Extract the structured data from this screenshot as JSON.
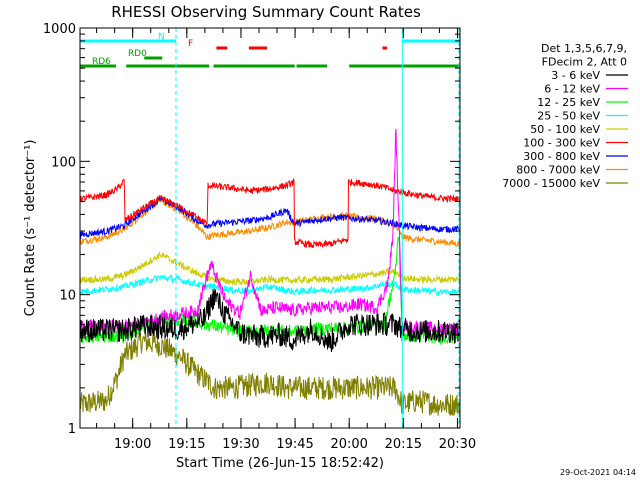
{
  "chart_data": {
    "type": "line",
    "title": "RHESSI Observing Summary Count Rates",
    "xlabel": "Start Time (26-Jun-15 18:52:42)",
    "ylabel": "Count Rate (s⁻¹ detector⁻¹)",
    "yscale": "log",
    "ylim": [
      1,
      1000
    ],
    "xlim_minutes_from_start": [
      -7.3,
      98
    ],
    "x_tick_labels": [
      "19:00",
      "19:15",
      "19:30",
      "19:45",
      "20:00",
      "20:15",
      "20:30"
    ],
    "x_tick_minutes": [
      7.3,
      22.3,
      37.3,
      52.3,
      67.3,
      82.3,
      97.3
    ],
    "y_tick_labels": [
      "1",
      "10",
      "100",
      "1000"
    ],
    "y_tick_values": [
      1,
      10,
      100,
      1000
    ],
    "legend_header": [
      "Det 1,3,5,6,7,9,",
      "FDecim 2, Att 0"
    ],
    "legend_placement": "right",
    "timestamp": "29-Oct-2021 04:14",
    "flags": [
      {
        "label": "N",
        "color": "#00ffff",
        "segments": [
          [
            -7.3,
            19.3
          ],
          [
            82.0,
            98.0
          ]
        ]
      },
      {
        "label": "F",
        "color": "#ff0000",
        "segments": [
          [
            30.5,
            33.5
          ],
          [
            39.5,
            44.5
          ],
          [
            76.5,
            77.8
          ]
        ]
      },
      {
        "label": "RD0",
        "color": "#00a000",
        "segments": [
          [
            10.5,
            15.5
          ]
        ]
      },
      {
        "label": "RD6",
        "color": "#00a000",
        "segments": [
          [
            -7.3,
            2.7
          ],
          [
            5.5,
            28.5
          ],
          [
            29.7,
            52.2
          ],
          [
            52.7,
            61.2
          ],
          [
            67.3,
            98.0
          ]
        ]
      }
    ],
    "markers": [
      {
        "type": "solid",
        "color": "#00ffff",
        "minute": -7.3
      },
      {
        "type": "dashed",
        "color": "#00ffff",
        "minute": 19.3
      },
      {
        "type": "solid",
        "color": "#00ffff",
        "minute": 82.0
      },
      {
        "type": "dashed",
        "color": "#00ffff",
        "minute": 97.7
      }
    ],
    "series": [
      {
        "name": "3 - 6 keV",
        "color": "#000000",
        "x": [
          -7.3,
          5.0,
          10.0,
          20.0,
          27.0,
          30.0,
          33.0,
          37.0,
          42.0,
          48.0,
          52.0,
          57.0,
          62.0,
          67.0,
          72.0,
          77.0,
          80.0,
          82.0,
          86.0,
          92.0,
          98.0
        ],
        "y": [
          5.4,
          5.4,
          5.8,
          5.5,
          6.5,
          10.0,
          7.0,
          5.2,
          4.8,
          5.0,
          4.6,
          5.6,
          4.4,
          6.0,
          6.0,
          6.0,
          6.0,
          5.5,
          5.3,
          5.3,
          5.3
        ]
      },
      {
        "name": "6 - 12 keV",
        "color": "#ff00ff",
        "x": [
          -7.3,
          5.0,
          10.0,
          18.0,
          25.0,
          29.0,
          33.0,
          37.0,
          40.0,
          43.0,
          47.0,
          52.0,
          57.0,
          62.0,
          66.0,
          70.0,
          75.0,
          78.0,
          79.5,
          80.2,
          81.0,
          82.0,
          86.0,
          92.0,
          98.0
        ],
        "y": [
          5.8,
          5.8,
          6.2,
          7.0,
          7.5,
          17.0,
          9.0,
          7.2,
          14.0,
          7.5,
          8.0,
          7.6,
          8.0,
          8.0,
          8.0,
          8.5,
          8.0,
          12.0,
          30.0,
          180.0,
          40.0,
          5.8,
          5.7,
          5.6,
          5.5
        ]
      },
      {
        "name": "12 - 25 keV",
        "color": "#00ff00",
        "x": [
          -7.3,
          5.0,
          10.0,
          15.0,
          20.0,
          25.0,
          28.0,
          33.0,
          38.0,
          45.0,
          52.0,
          57.0,
          62.0,
          67.0,
          72.0,
          77.0,
          80.0,
          81.0,
          82.0,
          86.0,
          92.0,
          98.0
        ],
        "y": [
          4.8,
          4.9,
          5.8,
          6.5,
          6.5,
          6.2,
          6.0,
          5.6,
          5.3,
          5.4,
          5.3,
          5.5,
          5.6,
          5.6,
          5.8,
          6.0,
          14.0,
          30.0,
          5.0,
          4.9,
          4.8,
          4.8
        ]
      },
      {
        "name": "25 - 50 keV",
        "color": "#00ffff",
        "x": [
          -7.3,
          0.0,
          5.0,
          10.0,
          15.0,
          20.0,
          25.0,
          28.0,
          30.0,
          35.0,
          40.0,
          45.0,
          52.0,
          57.0,
          62.0,
          67.0,
          72.0,
          77.0,
          80.0,
          82.0,
          86.0,
          92.0,
          98.0
        ],
        "y": [
          10.5,
          11.0,
          11.5,
          12.5,
          13.5,
          13.0,
          12.0,
          11.5,
          11.5,
          10.8,
          10.6,
          11.5,
          10.5,
          10.8,
          10.8,
          11.0,
          11.2,
          12.0,
          12.0,
          11.0,
          10.8,
          10.5,
          10.4
        ]
      },
      {
        "name": "50 - 100 keV",
        "color": "#cccc00",
        "x": [
          -7.3,
          0.0,
          5.0,
          10.0,
          15.0,
          20.0,
          25.0,
          28.0,
          30.0,
          35.0,
          40.0,
          45.0,
          52.0,
          57.0,
          62.0,
          67.0,
          72.0,
          77.0,
          80.0,
          82.0,
          86.0,
          92.0,
          98.0
        ],
        "y": [
          13.0,
          13.0,
          14.0,
          16.5,
          20.0,
          17.0,
          14.5,
          13.5,
          13.0,
          12.5,
          12.5,
          13.0,
          12.8,
          13.0,
          13.0,
          13.5,
          14.0,
          14.5,
          15.0,
          13.5,
          13.0,
          13.0,
          13.0
        ]
      },
      {
        "name": "100 - 300 keV",
        "color": "#ff0000",
        "x": [
          -7.3,
          0.0,
          3.0,
          5.0,
          5.1,
          10.0,
          15.0,
          20.0,
          25.0,
          28.0,
          28.1,
          35.0,
          40.0,
          45.0,
          50.0,
          52.0,
          52.1,
          57.0,
          62.0,
          67.0,
          67.1,
          72.0,
          77.0,
          80.0,
          86.0,
          92.0,
          98.0
        ],
        "y": [
          52.0,
          56.0,
          62.0,
          72.0,
          36.0,
          44.0,
          53.0,
          46.0,
          38.0,
          34.0,
          66.0,
          63.0,
          60.0,
          62.0,
          66.0,
          70.0,
          25.0,
          23.5,
          24.0,
          26.0,
          70.0,
          68.0,
          64.0,
          60.0,
          56.0,
          53.0,
          52.0
        ]
      },
      {
        "name": "300 - 800 keV",
        "color": "#0000ff",
        "x": [
          -7.3,
          0.0,
          5.0,
          10.0,
          15.0,
          20.0,
          25.0,
          28.0,
          30.0,
          35.0,
          40.0,
          45.0,
          50.0,
          52.0,
          55.0,
          60.0,
          65.0,
          70.0,
          75.0,
          80.0,
          82.0,
          86.0,
          92.0,
          98.0
        ],
        "y": [
          28.0,
          30.0,
          33.0,
          42.0,
          52.0,
          45.0,
          36.0,
          33.0,
          34.0,
          35.0,
          36.0,
          38.0,
          43.0,
          34.0,
          35.0,
          37.0,
          38.0,
          37.0,
          36.0,
          34.0,
          33.0,
          32.0,
          31.0,
          31.0
        ]
      },
      {
        "name": "800 - 7000 keV",
        "color": "#ff8c00",
        "x": [
          -7.3,
          0.0,
          5.0,
          10.0,
          15.0,
          20.0,
          25.0,
          28.0,
          30.0,
          35.0,
          40.0,
          45.0,
          50.0,
          52.0,
          55.0,
          60.0,
          65.0,
          70.0,
          75.0,
          80.0,
          82.0,
          86.0,
          92.0,
          98.0
        ],
        "y": [
          25.0,
          27.0,
          31.0,
          40.0,
          51.0,
          43.0,
          33.0,
          27.0,
          28.0,
          29.0,
          30.0,
          32.0,
          35.0,
          35.0,
          36.0,
          38.0,
          39.0,
          38.0,
          37.0,
          33.0,
          27.0,
          26.0,
          25.0,
          24.0
        ]
      },
      {
        "name": "7000 - 15000 keV",
        "color": "#808000",
        "x": [
          -7.3,
          0.0,
          3.0,
          5.0,
          10.0,
          15.0,
          20.0,
          25.0,
          30.0,
          35.0,
          40.0,
          45.0,
          50.0,
          55.0,
          60.0,
          65.0,
          70.0,
          75.0,
          80.0,
          82.0,
          86.0,
          92.0,
          98.0
        ],
        "y": [
          1.5,
          1.6,
          2.4,
          3.5,
          4.5,
          4.2,
          3.5,
          2.6,
          2.0,
          2.0,
          2.1,
          2.2,
          2.0,
          2.0,
          2.0,
          2.0,
          2.0,
          2.0,
          2.0,
          1.5,
          1.6,
          1.5,
          1.5
        ]
      }
    ]
  }
}
